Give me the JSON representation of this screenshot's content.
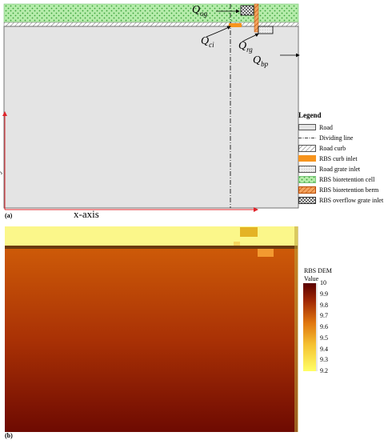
{
  "panel_a": {
    "label": "(a)",
    "flow_labels": {
      "q_og": "Q",
      "q_og_sub": "og",
      "q_ci": "Q",
      "q_ci_sub": "ci",
      "q_rg": "Q",
      "q_rg_sub": "rg",
      "q_bp": "Q",
      "q_bp_sub": "bp"
    },
    "axis_labels": {
      "x": "x-axis",
      "y": "y-axis"
    },
    "legend": {
      "title": "Legend",
      "items": [
        {
          "label": "Road",
          "icon": "solid-gray-swatch"
        },
        {
          "label": "Dividing line",
          "icon": "dash-dot-line"
        },
        {
          "label": "Road curb",
          "icon": "diagonal-hatch-swatch"
        },
        {
          "label": "RBS curb inlet",
          "icon": "orange-swatch"
        },
        {
          "label": "Road grate inlet",
          "icon": "dotted-gray-swatch"
        },
        {
          "label": "RBS bioretention cell",
          "icon": "green-dotted-swatch"
        },
        {
          "label": "RBS bioretention berm",
          "icon": "orange-hatch-swatch"
        },
        {
          "label": "RBS overflow grate inlet",
          "icon": "crosshatch-swatch"
        }
      ]
    },
    "colors": {
      "road": "#e4e4e4",
      "bioretention": "#a9e8a0",
      "curb_inlet": "#f7941d",
      "berm": "#e87722",
      "axis": "#e0242a"
    }
  },
  "panel_b": {
    "label": "(b)",
    "colorbar": {
      "title": "RBS DEM",
      "subtitle": "Value",
      "ticks": [
        "10",
        "9.9",
        "9.8",
        "9.7",
        "9.6",
        "9.5",
        "9.4",
        "9.3",
        "9.2"
      ],
      "min": 9.2,
      "max": 10
    }
  }
}
